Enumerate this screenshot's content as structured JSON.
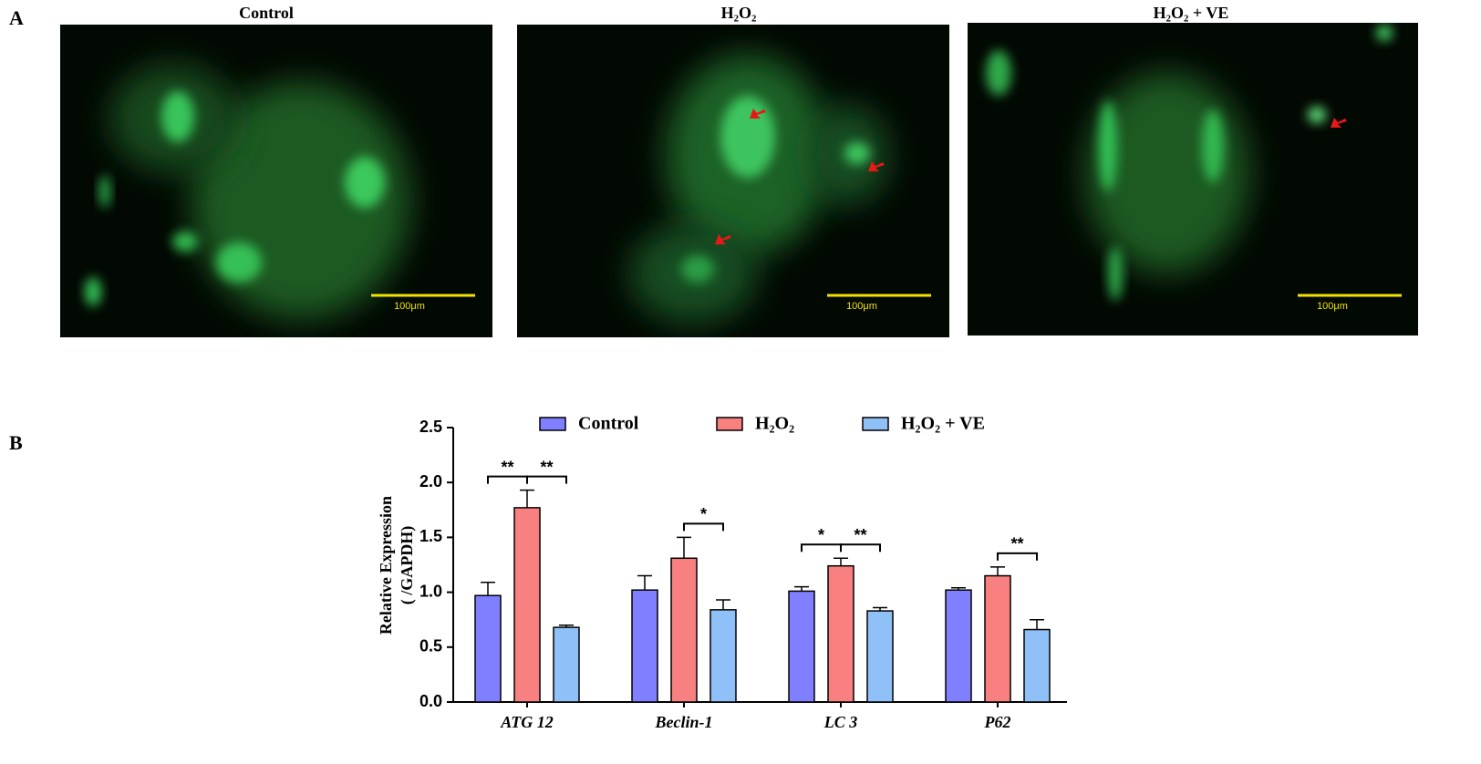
{
  "panel_a": {
    "label": "A",
    "images": [
      {
        "title": "Control",
        "scale_bar": "100μm"
      },
      {
        "title": "H₂O₂",
        "scale_bar": "100μm"
      },
      {
        "title": "H₂O₂ + VE",
        "scale_bar": "100μm"
      }
    ]
  },
  "panel_b": {
    "label": "B"
  },
  "chart_data": {
    "type": "bar",
    "ylabel": [
      "Relative Expression",
      "( /GAPDH)"
    ],
    "categories": [
      "ATG 12",
      "Beclin-1",
      "LC 3",
      "P62"
    ],
    "series": [
      {
        "name": "Control",
        "color": "#7f7fff",
        "values": [
          0.97,
          1.02,
          1.01,
          1.02
        ],
        "errors": [
          0.12,
          0.13,
          0.04,
          0.02
        ]
      },
      {
        "name": "H₂O₂",
        "color": "#f88080",
        "values": [
          1.77,
          1.31,
          1.24,
          1.15
        ],
        "errors": [
          0.16,
          0.19,
          0.07,
          0.08
        ]
      },
      {
        "name": "H₂O₂ + VE",
        "color": "#8fc0f8",
        "values": [
          0.68,
          0.84,
          0.83,
          0.66
        ],
        "errors": [
          0.02,
          0.09,
          0.03,
          0.09
        ]
      }
    ],
    "significance": [
      [
        "**",
        "**"
      ],
      [
        null,
        "*"
      ],
      [
        "*",
        "**"
      ],
      [
        null,
        "**"
      ]
    ],
    "ylim": [
      0,
      2.5
    ],
    "yticks": [
      {
        "value": 0,
        "label": "0.0"
      },
      0.5,
      {
        "value": 1,
        "label": "1.0"
      },
      1.5,
      {
        "value": 2,
        "label": "2.0"
      },
      2.5
    ]
  }
}
